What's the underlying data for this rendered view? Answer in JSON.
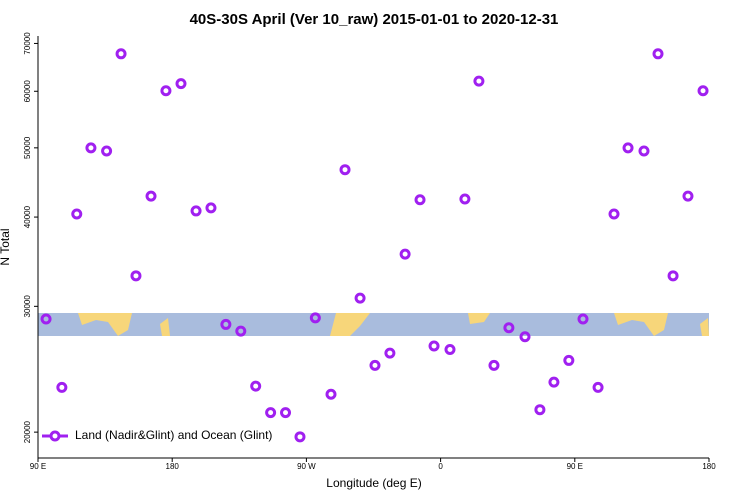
{
  "chart_data": {
    "type": "scatter",
    "title": "40S-30S April (Ver 10_raw)   2015-01-01 to 2020-12-31",
    "x_label": "Longitude (deg E)",
    "y_label": "N Total",
    "yscale": "log",
    "xlim": [
      90,
      540
    ],
    "ylim": [
      18400,
      71700
    ],
    "xticks": [
      {
        "value": 90,
        "label": "90 E"
      },
      180,
      {
        "value": 270,
        "label": "90 W"
      },
      {
        "value": 360,
        "label": "0"
      },
      {
        "value": 450,
        "label": "90 E"
      },
      {
        "value": 540,
        "label": "180"
      }
    ],
    "yticks": [
      20000,
      30000,
      40000,
      50000,
      60000,
      70000
    ],
    "legend_position": "lower left",
    "series": [
      {
        "name": "Land (Nadir&Glint) and Ocean (Glint)",
        "color": "#a020f0",
        "x": [
          95.4,
          106,
          116,
          125.5,
          136,
          145.7,
          155.7,
          165.8,
          175.8,
          185.9,
          196,
          206,
          216,
          226,
          236,
          246,
          256,
          265.7,
          276,
          286.5,
          295.9,
          306,
          316,
          326,
          336.2,
          346.2,
          355.6,
          366.3,
          376.3,
          385.7,
          395.8,
          405.8,
          416.6,
          426.6,
          436,
          446,
          455.5,
          465.6,
          476.3,
          485.7,
          496.4,
          505.8,
          515.9,
          525.9,
          536
        ],
        "values": [
          28800,
          23100,
          40400,
          50000,
          49500,
          67700,
          33100,
          42800,
          60100,
          61500,
          40800,
          41200,
          28300,
          27700,
          23200,
          21300,
          21300,
          19700,
          28900,
          22600,
          46600,
          30800,
          24800,
          25800,
          35500,
          42300,
          26400,
          26100,
          42400,
          62000,
          24800,
          28000,
          27200,
          21500,
          23500,
          25200,
          28800,
          23100,
          40400,
          50000,
          49500,
          67700,
          33100,
          42800,
          60100
        ]
      }
    ]
  }
}
